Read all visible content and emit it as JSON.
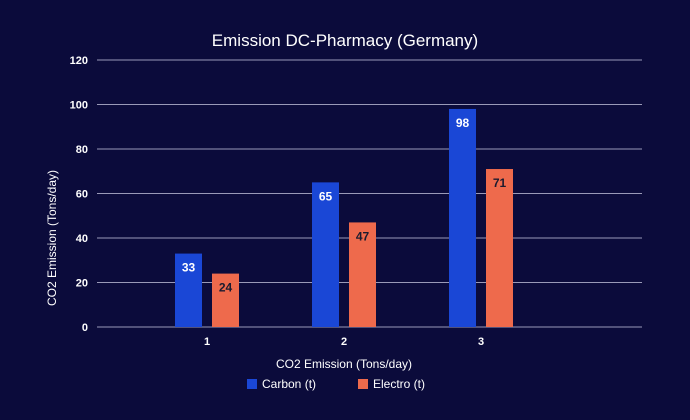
{
  "chart_data": {
    "type": "bar",
    "title": "Emission DC-Pharmacy (Germany)",
    "xlabel": "CO2 Emission (Tons/day)",
    "ylabel": "CO2 Emission (Tons/day)",
    "categories": [
      "1",
      "2",
      "3"
    ],
    "ylim": [
      0,
      120
    ],
    "yticks": [
      "0",
      "20",
      "40",
      "60",
      "80",
      "100",
      "120"
    ],
    "grid": true,
    "legend_position": "bottom",
    "series": [
      {
        "name": "Carbon (t)",
        "values": [
          33,
          65,
          98
        ],
        "color": "#1a47d6",
        "label_color": "#ffffff"
      },
      {
        "name": "Electro (t)",
        "values": [
          24,
          47,
          71
        ],
        "color": "#ee6a4c",
        "label_color": "#1b1b2f"
      }
    ]
  }
}
